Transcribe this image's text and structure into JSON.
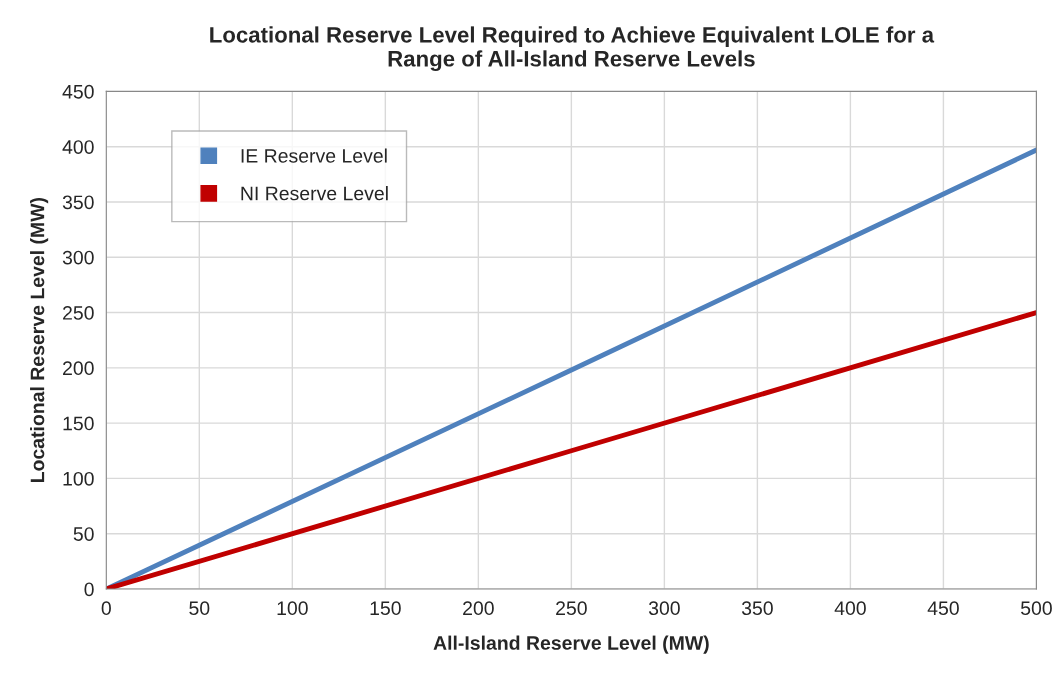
{
  "chart_data": {
    "type": "line",
    "title": "Locational Reserve Level Required to Achieve Equivalent LOLE for a\nRange of All-Island Reserve Levels",
    "xlabel": "All-Island Reserve Level (MW)",
    "ylabel": "Locational Reserve Level (MW)",
    "x": [
      0,
      250,
      500
    ],
    "series": [
      {
        "name": "IE Reserve Level",
        "color": "#4f81bd",
        "values": [
          0,
          198,
          397
        ]
      },
      {
        "name": "NI Reserve Level",
        "color": "#c00000",
        "values": [
          0,
          125,
          250
        ]
      }
    ],
    "xlim": [
      0,
      500
    ],
    "xticks": [
      0,
      50,
      100,
      150,
      200,
      250,
      300,
      350,
      400,
      450,
      500
    ],
    "ylim": [
      0,
      450
    ],
    "yticks": [
      0,
      50,
      100,
      150,
      200,
      250,
      300,
      350,
      400,
      450
    ],
    "grid": true,
    "legend": "top left",
    "line_style": "solid",
    "marker": "none"
  }
}
